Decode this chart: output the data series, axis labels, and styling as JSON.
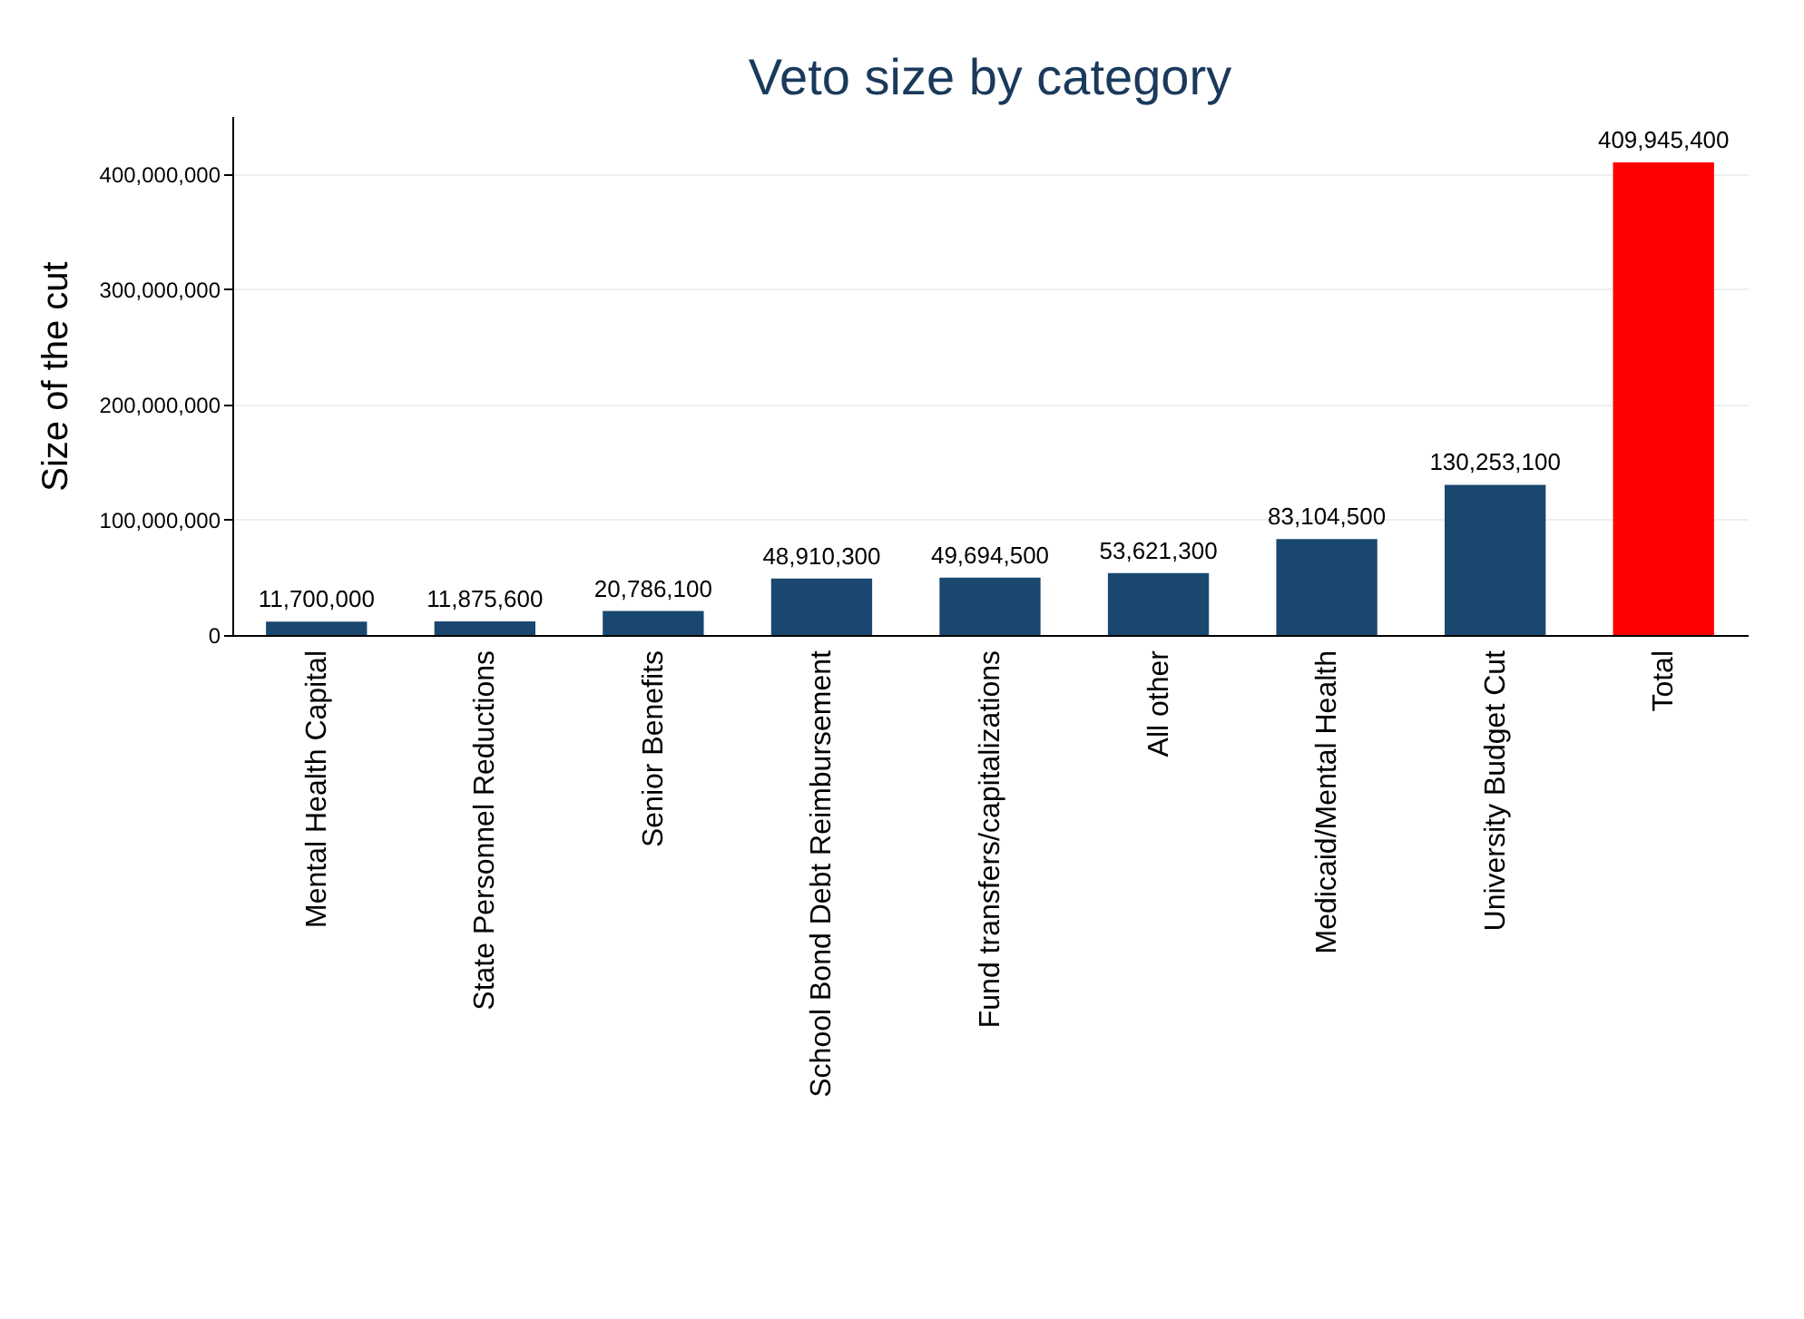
{
  "chart_data": {
    "type": "bar",
    "title": "Veto size by category",
    "ylabel": "Size of the cut",
    "categories": [
      "Mental Health Capital",
      "State Personnel Reductions",
      "Senior Benefits",
      "School Bond Debt Reimbursement",
      "Fund transfers/capitalizations",
      "All other",
      "Medicaid/Mental Health",
      "University Budget Cut",
      "Total"
    ],
    "values": [
      11700000,
      11875600,
      20786100,
      48910300,
      49694500,
      53621300,
      83104500,
      130253100,
      409945400
    ],
    "colors": [
      "#1a476f",
      "#1a476f",
      "#1a476f",
      "#1a476f",
      "#1a476f",
      "#1a476f",
      "#1a476f",
      "#1a476f",
      "#ff0000"
    ],
    "ylim": [
      0,
      450000000
    ],
    "yticks": [
      {
        "value": 0,
        "label": "0"
      },
      {
        "value": 100000000,
        "label": "100,000,000"
      },
      {
        "value": 200000000,
        "label": "200,000,000"
      },
      {
        "value": 300000000,
        "label": "300,000,000"
      },
      {
        "value": 400000000,
        "label": "400,000,000"
      }
    ],
    "value_labels": [
      "11,700,000",
      "11,875,600",
      "20,786,100",
      "48,910,300",
      "49,694,500",
      "53,621,300",
      "83,104,500",
      "130,253,100",
      "409,945,400"
    ],
    "grid": "y"
  }
}
